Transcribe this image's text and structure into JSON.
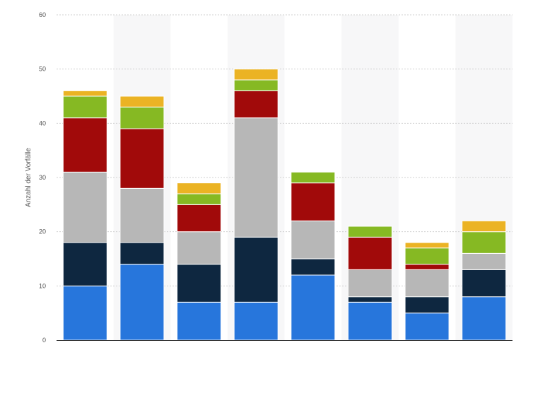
{
  "chart_data": {
    "type": "bar",
    "stacked": true,
    "title": "",
    "xlabel": "",
    "ylabel": "Anzahl der Vorfälle",
    "ylim": [
      0,
      60
    ],
    "yticks": [
      0,
      10,
      20,
      30,
      40,
      50,
      60
    ],
    "grid": true,
    "legend": "none",
    "categories": [
      "",
      "",
      "",
      "",
      "",
      "",
      "",
      ""
    ],
    "series": [
      {
        "color": "#2776dc",
        "values": [
          10,
          14,
          7,
          7,
          12,
          7,
          5,
          8
        ]
      },
      {
        "color": "#0e2740",
        "values": [
          8,
          4,
          7,
          12,
          3,
          1,
          3,
          5
        ]
      },
      {
        "color": "#b7b7b7",
        "values": [
          13,
          10,
          6,
          22,
          7,
          5,
          5,
          3
        ]
      },
      {
        "color": "#a10a0a",
        "values": [
          10,
          11,
          5,
          5,
          7,
          6,
          1,
          0
        ]
      },
      {
        "color": "#86b923",
        "values": [
          4,
          4,
          2,
          2,
          2,
          2,
          3,
          4
        ]
      },
      {
        "color": "#ebb324",
        "values": [
          1,
          2,
          2,
          2,
          0,
          0,
          1,
          2
        ]
      }
    ]
  }
}
